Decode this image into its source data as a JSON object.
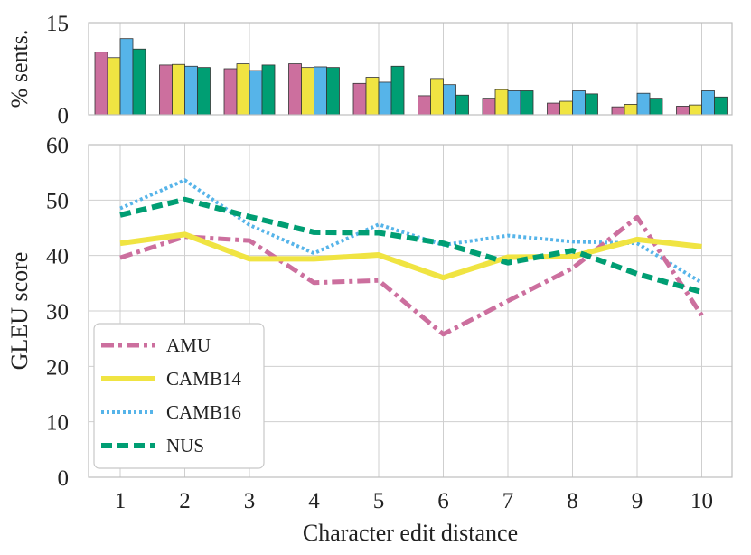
{
  "chart_data": [
    {
      "type": "bar",
      "ylabel": "% sents.",
      "xlabel": "",
      "ylim": [
        0,
        15
      ],
      "yticks": [
        "0",
        "15"
      ],
      "categories": [
        "1",
        "2",
        "3",
        "4",
        "5",
        "6",
        "7",
        "8",
        "9",
        "10"
      ],
      "series": [
        {
          "name": "AMU",
          "color": "#cc6f9e",
          "values": [
            10.2,
            8.1,
            7.5,
            8.3,
            5.1,
            3.1,
            2.7,
            1.9,
            1.3,
            1.4
          ]
        },
        {
          "name": "CAMB14",
          "color": "#f0e442",
          "values": [
            9.3,
            8.2,
            8.3,
            7.7,
            6.1,
            5.9,
            4.1,
            2.2,
            1.7,
            1.6
          ]
        },
        {
          "name": "CAMB16",
          "color": "#56b4e9",
          "values": [
            12.4,
            7.9,
            7.2,
            7.8,
            5.3,
            4.9,
            3.9,
            3.9,
            3.5,
            3.9
          ]
        },
        {
          "name": "NUS",
          "color": "#009e73",
          "values": [
            10.7,
            7.7,
            8.1,
            7.7,
            7.9,
            3.2,
            3.9,
            3.4,
            2.7,
            2.9
          ]
        }
      ],
      "grid": true
    },
    {
      "type": "line",
      "xlabel": "Character edit distance",
      "ylabel": "GLEU score",
      "ylim": [
        0,
        60
      ],
      "yticks": [
        "0",
        "10",
        "20",
        "30",
        "40",
        "50",
        "60"
      ],
      "x": [
        "1",
        "2",
        "3",
        "4",
        "5",
        "6",
        "7",
        "8",
        "9",
        "10"
      ],
      "series": [
        {
          "name": "AMU",
          "color": "#cc6f9e",
          "style": "dashdot",
          "values": [
            39.6,
            43.4,
            42.7,
            35.1,
            35.5,
            25.8,
            31.8,
            37.7,
            46.9,
            29.2
          ]
        },
        {
          "name": "CAMB14",
          "color": "#f0e442",
          "style": "solid",
          "values": [
            42.2,
            43.8,
            39.4,
            39.4,
            40.1,
            36.0,
            39.7,
            39.8,
            42.9,
            41.6
          ]
        },
        {
          "name": "CAMB16",
          "color": "#56b4e9",
          "style": "dotted",
          "values": [
            48.5,
            53.6,
            45.5,
            40.4,
            45.6,
            41.9,
            43.6,
            42.5,
            42.2,
            35.1
          ]
        },
        {
          "name": "NUS",
          "color": "#009e73",
          "style": "dashed",
          "values": [
            47.3,
            50.1,
            47.0,
            44.2,
            44.1,
            42.2,
            38.7,
            40.9,
            36.7,
            33.4
          ]
        }
      ],
      "legend": "lower-left",
      "grid": true
    }
  ]
}
